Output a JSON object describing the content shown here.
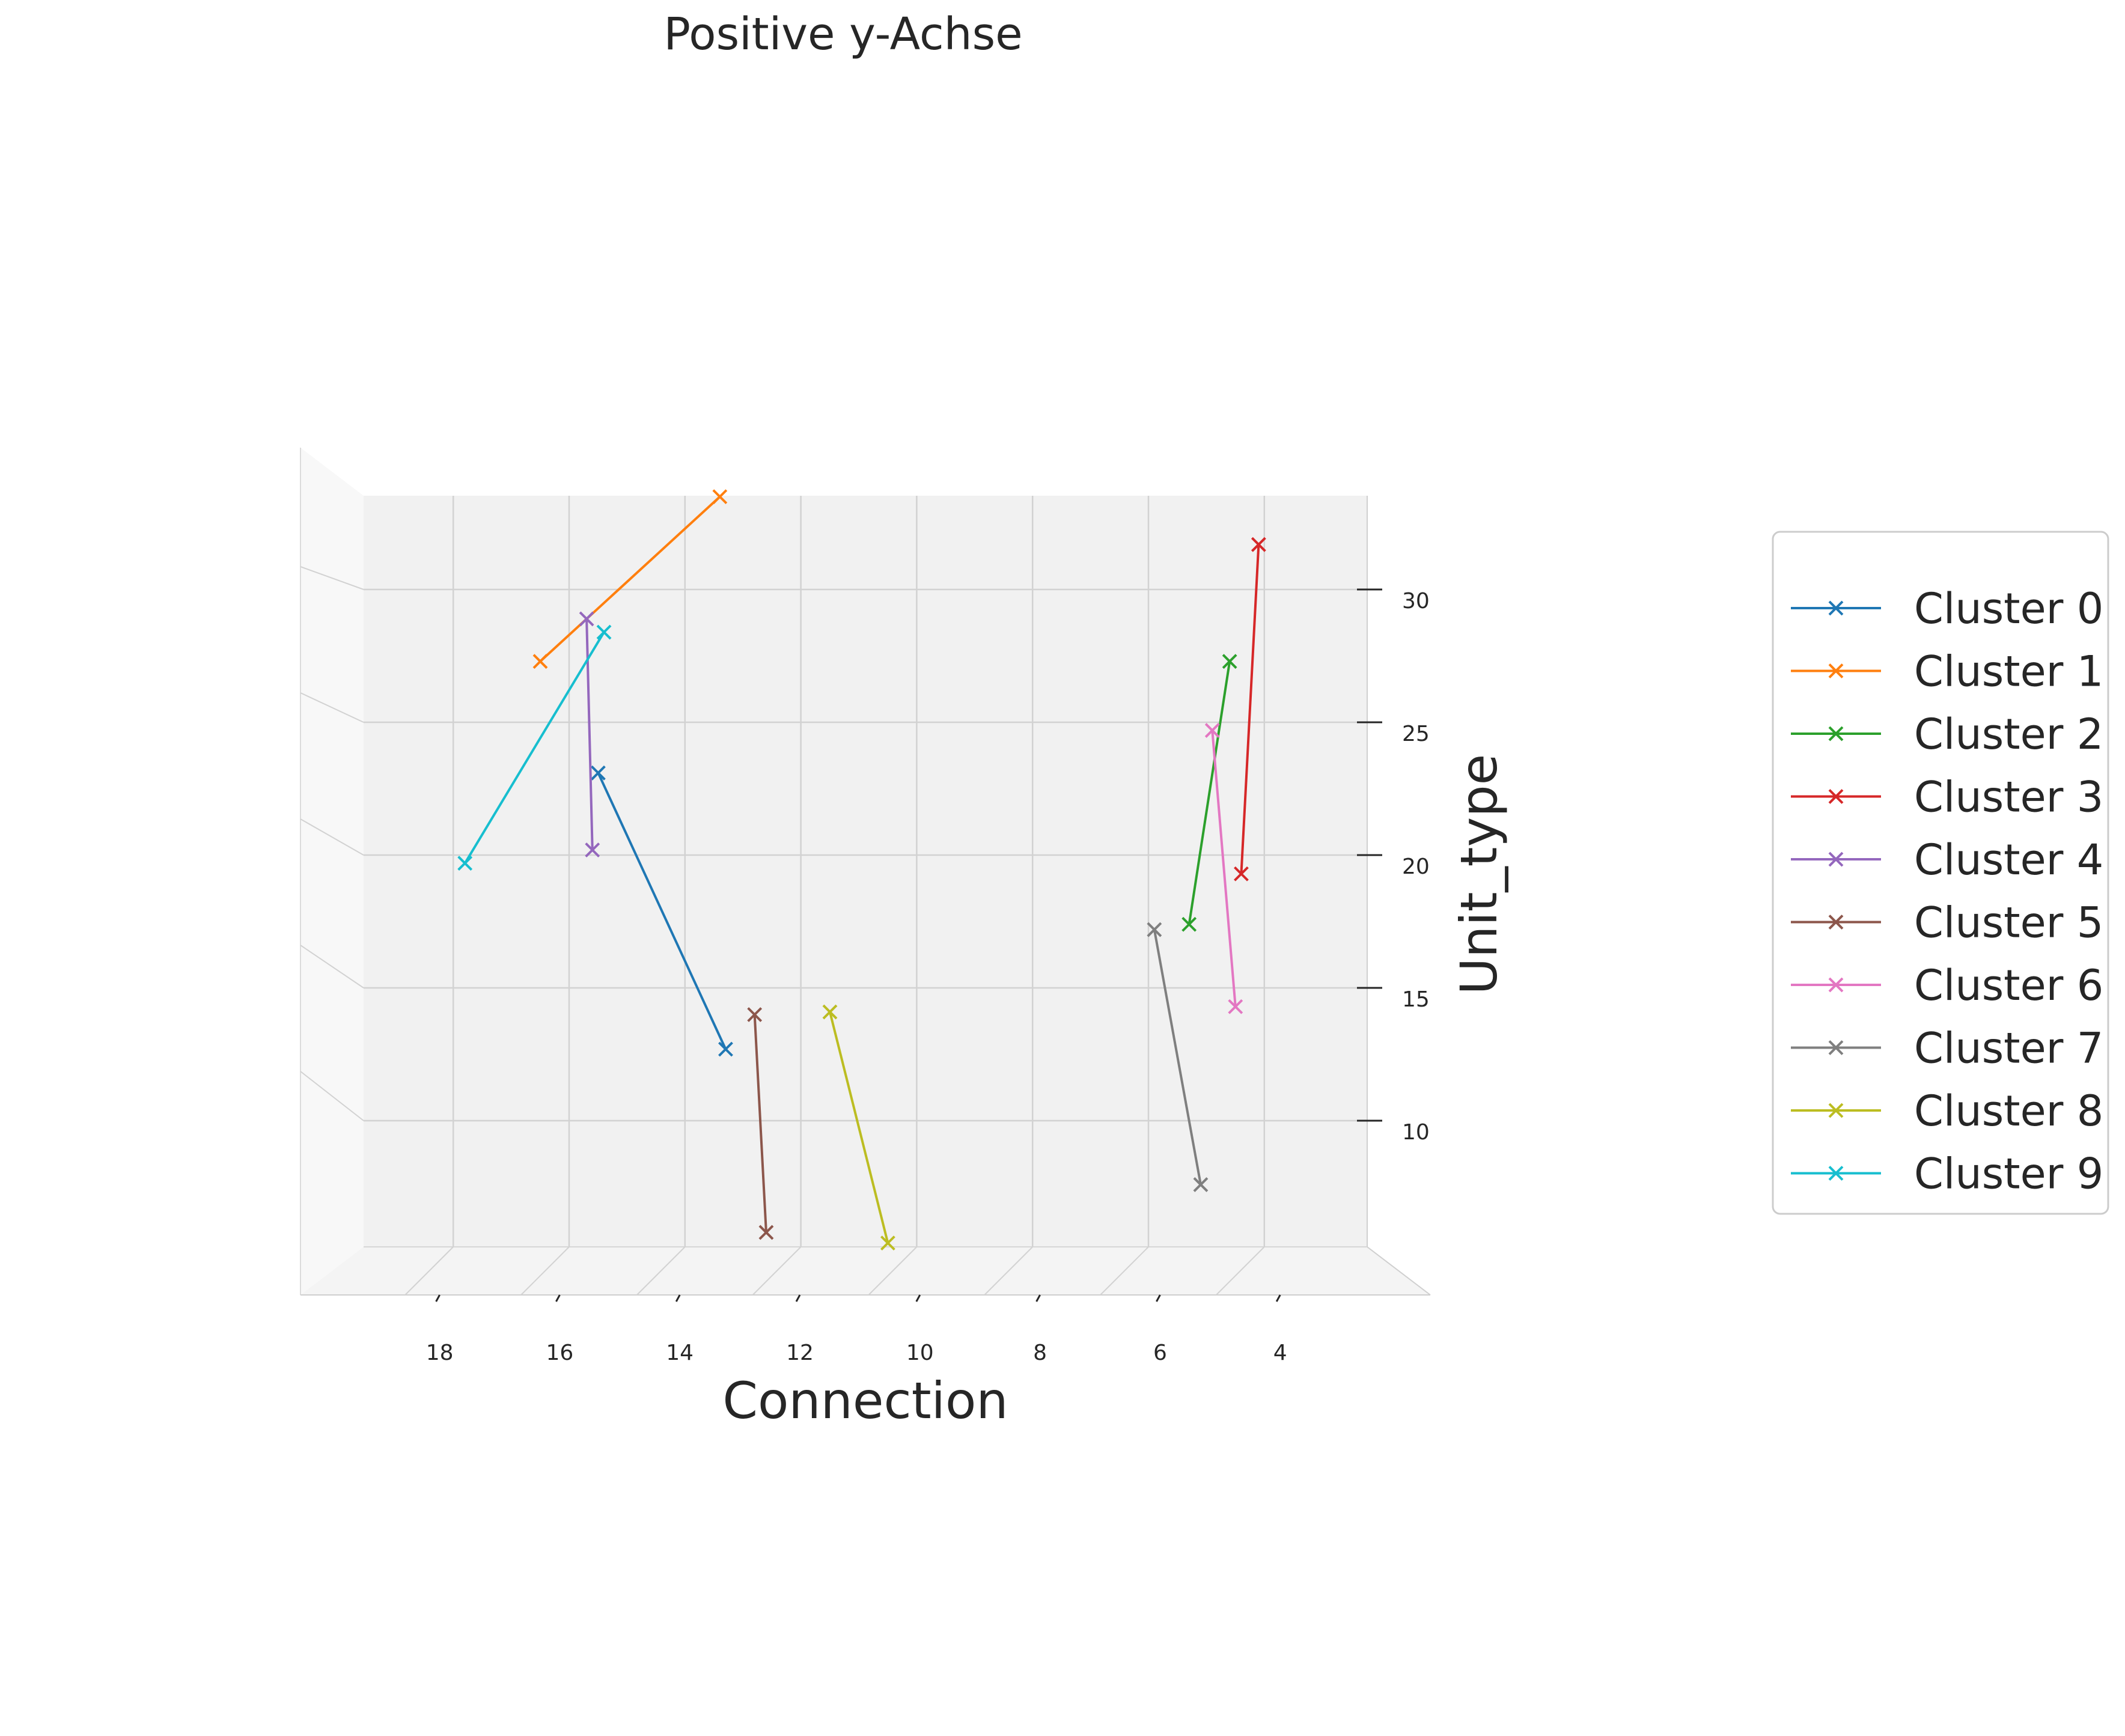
{
  "chart_data": {
    "type": "line",
    "title": "Positive y-Achse",
    "xlabel": "Connection",
    "ylabel": "Unit_type",
    "x_ticks": [
      "18",
      "16",
      "14",
      "12",
      "10",
      "8",
      "6",
      "4"
    ],
    "y_ticks": [
      "30",
      "25",
      "20",
      "15",
      "10"
    ],
    "xlim": [
      20,
      3
    ],
    "ylim": [
      6,
      34
    ],
    "x_reversed": true,
    "grid": true,
    "legend_position": "right",
    "marker": "x",
    "series": [
      {
        "name": "Cluster 0",
        "color": "#1f77b4",
        "points": [
          [
            16.0,
            23.5
          ],
          [
            13.8,
            13.1
          ]
        ]
      },
      {
        "name": "Cluster 1",
        "color": "#ff7f0e",
        "points": [
          [
            17.0,
            27.7
          ],
          [
            13.9,
            33.9
          ]
        ]
      },
      {
        "name": "Cluster 2",
        "color": "#2ca02c",
        "points": [
          [
            5.8,
            17.8
          ],
          [
            5.1,
            27.7
          ]
        ]
      },
      {
        "name": "Cluster 3",
        "color": "#d62728",
        "points": [
          [
            4.9,
            19.7
          ],
          [
            4.6,
            32.1
          ]
        ]
      },
      {
        "name": "Cluster 4",
        "color": "#9467bd",
        "points": [
          [
            16.1,
            20.6
          ],
          [
            16.2,
            29.3
          ]
        ]
      },
      {
        "name": "Cluster 5",
        "color": "#8c564b",
        "points": [
          [
            13.3,
            14.4
          ],
          [
            13.1,
            6.2
          ]
        ]
      },
      {
        "name": "Cluster 6",
        "color": "#e377c2",
        "points": [
          [
            5.4,
            25.1
          ],
          [
            5.0,
            14.7
          ]
        ]
      },
      {
        "name": "Cluster 7",
        "color": "#7f7f7f",
        "points": [
          [
            6.4,
            17.6
          ],
          [
            5.6,
            8.0
          ]
        ]
      },
      {
        "name": "Cluster 8",
        "color": "#bcbd22",
        "points": [
          [
            12.0,
            14.5
          ],
          [
            11.0,
            5.8
          ]
        ]
      },
      {
        "name": "Cluster 9",
        "color": "#17becf",
        "points": [
          [
            18.3,
            20.1
          ],
          [
            15.9,
            28.8
          ]
        ]
      }
    ]
  }
}
